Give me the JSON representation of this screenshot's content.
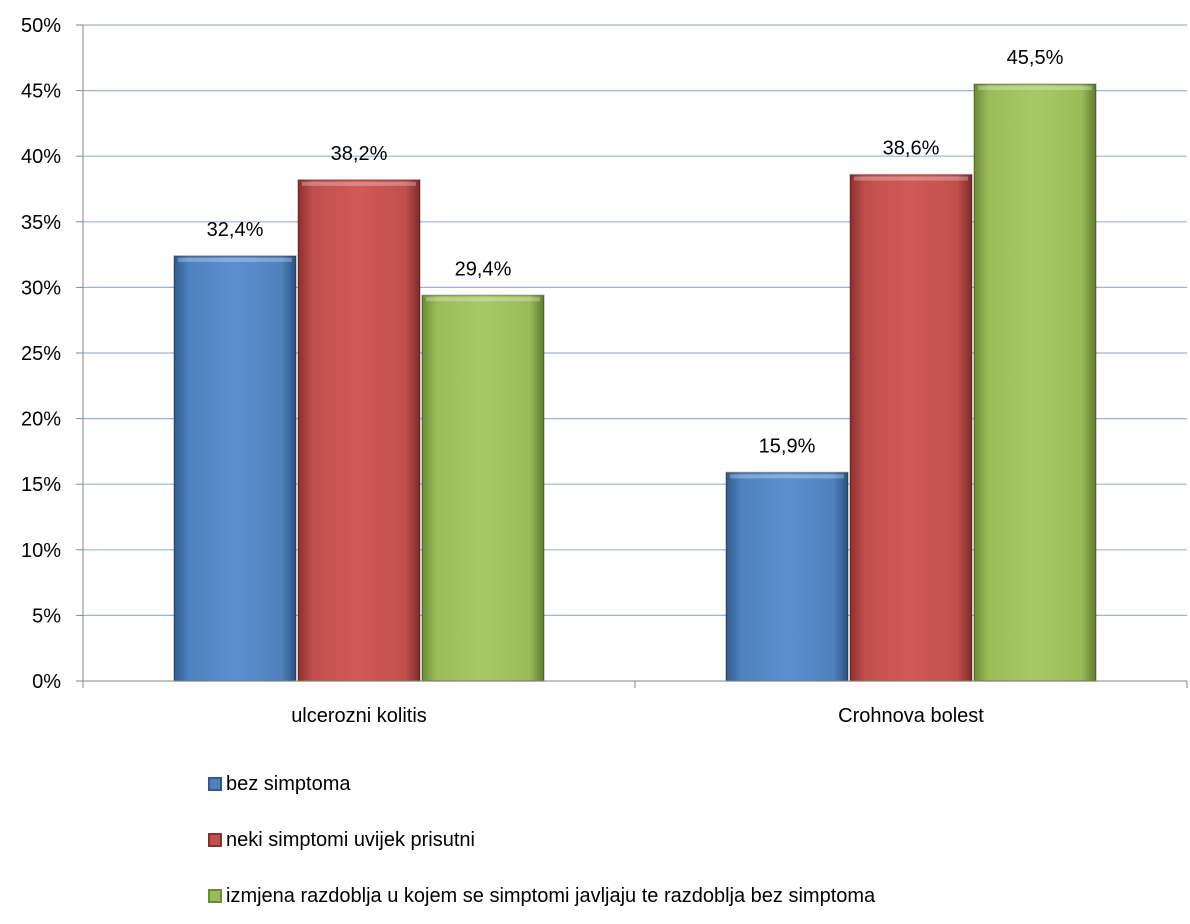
{
  "chart_data": {
    "type": "bar",
    "categories": [
      "ulcerozni kolitis",
      "Crohnova bolest"
    ],
    "series": [
      {
        "name": "bez simptoma",
        "values": [
          32.4,
          15.9
        ],
        "labels": [
          "32,4%",
          "15,9%"
        ],
        "color": "#4F81BD"
      },
      {
        "name": "neki simptomi uvijek prisutni",
        "values": [
          38.2,
          38.6
        ],
        "labels": [
          "38,2%",
          "38,6%"
        ],
        "color": "#C0504D"
      },
      {
        "name": "izmjena razdoblja u kojem se simptomi javljaju te razdoblja bez simptoma",
        "values": [
          29.4,
          45.5
        ],
        "labels": [
          "29,4%",
          "45,5%"
        ],
        "color": "#9BBB59"
      }
    ],
    "ylim": [
      0,
      50
    ],
    "yticks": [
      "0%",
      "5%",
      "10%",
      "15%",
      "20%",
      "25%",
      "30%",
      "35%",
      "40%",
      "45%",
      "50%"
    ],
    "grid": true,
    "legend_position": "bottom"
  }
}
